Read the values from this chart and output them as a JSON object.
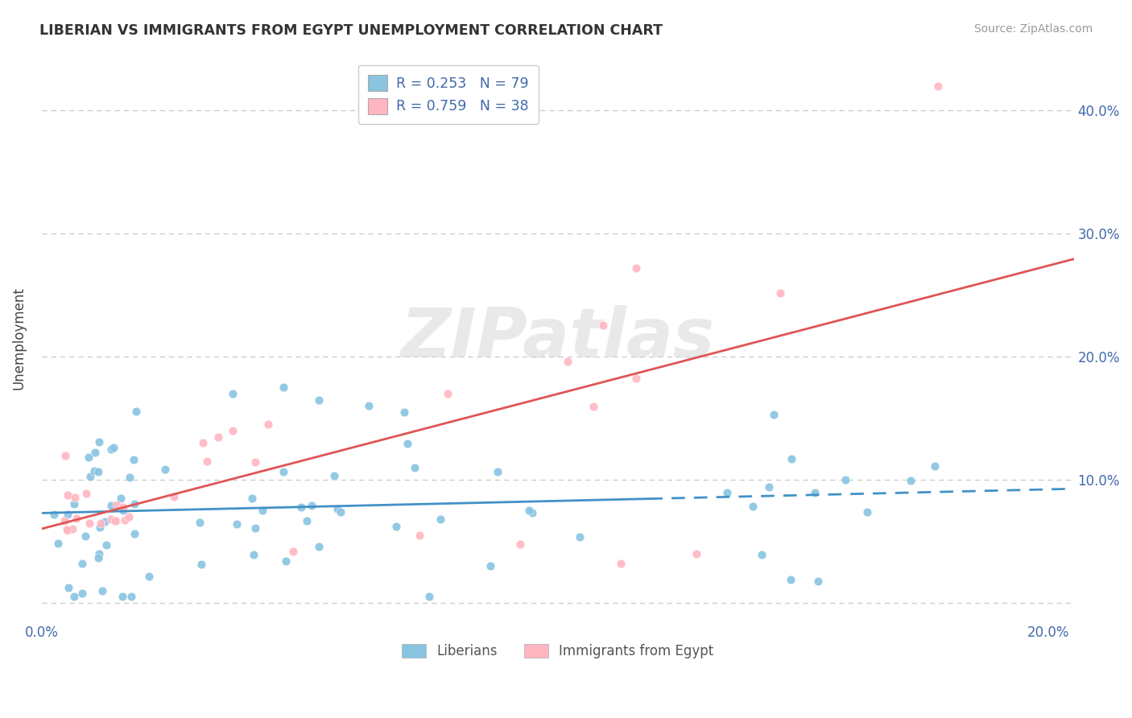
{
  "title": "LIBERIAN VS IMMIGRANTS FROM EGYPT UNEMPLOYMENT CORRELATION CHART",
  "source": "Source: ZipAtlas.com",
  "ylabel": "Unemployment",
  "xlim": [
    0.0,
    0.205
  ],
  "ylim": [
    -0.015,
    0.445
  ],
  "R_liberian": 0.253,
  "N_liberian": 79,
  "R_egypt": 0.759,
  "N_egypt": 38,
  "blue_scatter": "#89C4E1",
  "pink_scatter": "#FFB6C1",
  "blue_line": "#4292c6",
  "pink_line": "#e05555",
  "axis_color": "#4169aa",
  "grid_color": "#c8c8c8",
  "title_color": "#333333",
  "source_color": "#999999",
  "legend_labels": [
    "Liberians",
    "Immigrants from Egypt"
  ],
  "watermark_color": "#d8d8d8"
}
